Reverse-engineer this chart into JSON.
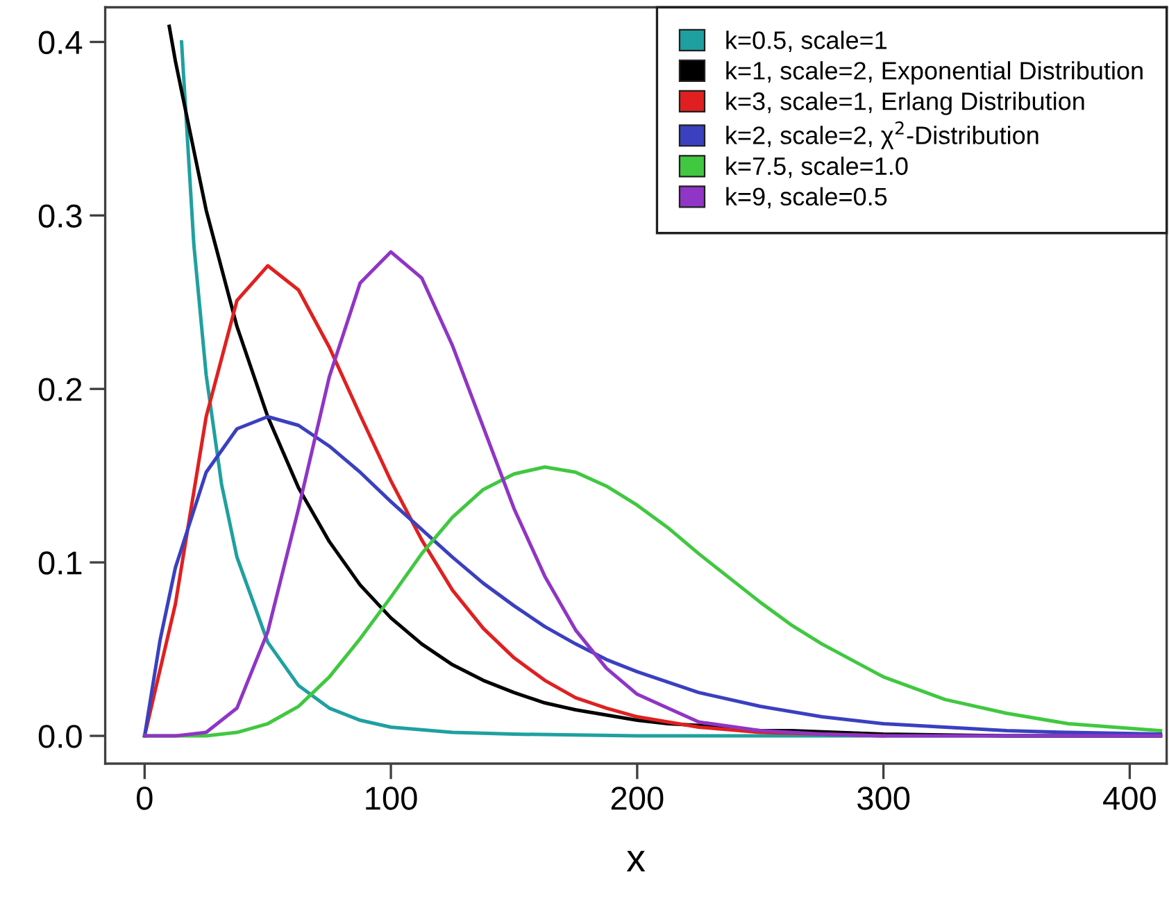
{
  "chart_data": {
    "type": "line",
    "xlabel": "x",
    "xlim": [
      -16,
      415
    ],
    "ylim": [
      -0.016,
      0.42
    ],
    "xticks": [
      0,
      100,
      200,
      300,
      400
    ],
    "yticks": [
      {
        "value": 0,
        "label": "0.0"
      },
      0.1,
      0.2,
      0.3,
      0.4
    ],
    "grid": false,
    "legend": "top right",
    "marker": "none",
    "line_style": "solid",
    "series": [
      {
        "name": "k=0.5, scale=1",
        "color": "#1fa0a0",
        "x": [
          15,
          20,
          25,
          31.25,
          37.5,
          50,
          62.5,
          75,
          87.5,
          100,
          125,
          150,
          200,
          250,
          300,
          350,
          412.5
        ],
        "values": [
          0.4,
          0.283,
          0.208,
          0.145,
          0.103,
          0.054,
          0.029,
          0.016,
          0.009,
          0.005,
          0.002,
          0.001,
          0,
          0,
          0,
          0,
          0
        ]
      },
      {
        "name": "k=1, scale=2, Exponential Distribution",
        "color": "#000000",
        "x": [
          10,
          12.5,
          25,
          37.5,
          50,
          62.5,
          75,
          87.5,
          100,
          112.5,
          125,
          137.5,
          150,
          162.5,
          175,
          187.5,
          200,
          212.5,
          225,
          237.5,
          250,
          262.5,
          300,
          350,
          412.5
        ],
        "values": [
          0.409,
          0.389,
          0.303,
          0.236,
          0.184,
          0.143,
          0.112,
          0.087,
          0.068,
          0.053,
          0.041,
          0.032,
          0.025,
          0.019,
          0.015,
          0.012,
          0.009,
          0.007,
          0.006,
          0.004,
          0.003,
          0.003,
          0.001,
          0,
          0
        ]
      },
      {
        "name": "k=3, scale=1, Erlang Distribution",
        "color": "#e02020",
        "x": [
          0,
          12.5,
          25,
          37.5,
          50,
          62.5,
          75,
          87.5,
          100,
          112.5,
          125,
          137.5,
          150,
          162.5,
          175,
          187.5,
          200,
          225,
          250,
          275,
          300
        ],
        "values": [
          0,
          0.076,
          0.184,
          0.251,
          0.271,
          0.257,
          0.224,
          0.185,
          0.147,
          0.113,
          0.084,
          0.062,
          0.045,
          0.032,
          0.022,
          0.016,
          0.011,
          0.005,
          0.002,
          0.001,
          0
        ]
      },
      {
        "name": "k=2, scale=2, χ$^{2}$-Distribution",
        "color": "#3a40c0",
        "x": [
          0,
          6.25,
          12.5,
          25,
          37.5,
          50,
          62.5,
          75,
          87.5,
          100,
          112.5,
          125,
          137.5,
          150,
          162.5,
          175,
          187.5,
          200,
          225,
          250,
          275,
          300,
          325,
          350,
          375,
          412.5
        ],
        "values": [
          0,
          0.055,
          0.097,
          0.152,
          0.177,
          0.184,
          0.179,
          0.167,
          0.152,
          0.135,
          0.119,
          0.103,
          0.088,
          0.075,
          0.063,
          0.053,
          0.044,
          0.037,
          0.025,
          0.017,
          0.011,
          0.007,
          0.005,
          0.003,
          0.002,
          0.001
        ]
      },
      {
        "name": "k=7.5, scale=1.0",
        "color": "#40c840",
        "x": [
          0,
          25,
          37.5,
          50,
          62.5,
          75,
          87.5,
          100,
          112.5,
          125,
          137.5,
          150,
          162.5,
          175,
          187.5,
          200,
          212.5,
          225,
          237.5,
          250,
          262.5,
          275,
          300,
          325,
          350,
          375,
          412.5
        ],
        "values": [
          0,
          0,
          0.002,
          0.007,
          0.017,
          0.034,
          0.056,
          0.08,
          0.105,
          0.126,
          0.142,
          0.151,
          0.155,
          0.152,
          0.144,
          0.133,
          0.12,
          0.105,
          0.091,
          0.077,
          0.064,
          0.053,
          0.034,
          0.021,
          0.013,
          0.007,
          0.003
        ]
      },
      {
        "name": "k=9, scale=0.5",
        "color": "#9035c5",
        "x": [
          0,
          12.5,
          25,
          37.5,
          50,
          62.5,
          75,
          87.5,
          100,
          112.5,
          125,
          137.5,
          150,
          162.5,
          175,
          187.5,
          200,
          225,
          250,
          275,
          300,
          350,
          412.5
        ],
        "values": [
          0,
          0,
          0.002,
          0.016,
          0.06,
          0.131,
          0.207,
          0.261,
          0.279,
          0.264,
          0.225,
          0.178,
          0.131,
          0.092,
          0.061,
          0.039,
          0.024,
          0.008,
          0.003,
          0.001,
          0,
          0,
          0
        ]
      }
    ]
  }
}
